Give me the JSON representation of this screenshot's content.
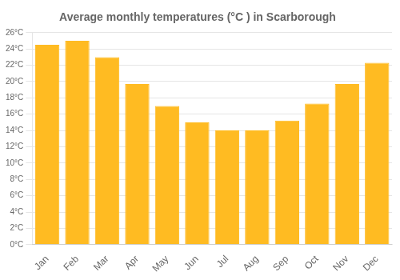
{
  "chart_data": {
    "type": "bar",
    "title": "Average monthly temperatures (°C ) in Scarborough",
    "categories": [
      "Jan",
      "Feb",
      "Mar",
      "Apr",
      "May",
      "Jun",
      "Jul",
      "Aug",
      "Sep",
      "Oct",
      "Nov",
      "Dec"
    ],
    "values": [
      24.5,
      25.0,
      23.0,
      19.7,
      17.0,
      15.0,
      14.0,
      14.0,
      15.2,
      17.3,
      19.7,
      22.3
    ],
    "color": "#FFBB22",
    "ylim": [
      0,
      26
    ],
    "yticks": [
      {
        "value": 0,
        "label": "0°C"
      },
      {
        "value": 2,
        "label": "2°C"
      },
      {
        "value": 4,
        "label": "4°C"
      },
      {
        "value": 6,
        "label": "6°C"
      },
      {
        "value": 8,
        "label": "8°C"
      },
      {
        "value": 10,
        "label": "10°C"
      },
      {
        "value": 12,
        "label": "12°C"
      },
      {
        "value": 14,
        "label": "14°C"
      },
      {
        "value": 16,
        "label": "16°C"
      },
      {
        "value": 18,
        "label": "18°C"
      },
      {
        "value": 20,
        "label": "20°C"
      },
      {
        "value": 22,
        "label": "22°C"
      },
      {
        "value": 24,
        "label": "24°C"
      },
      {
        "value": 26,
        "label": "26°C"
      }
    ],
    "grid": true
  }
}
